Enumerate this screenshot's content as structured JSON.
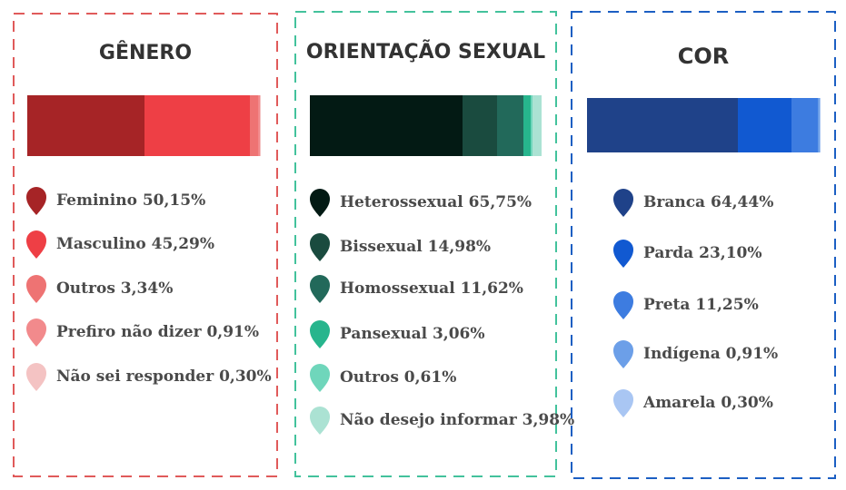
{
  "chart_data": [
    {
      "type": "bar",
      "stacked": true,
      "orientation": "horizontal",
      "title": "GÊNERO",
      "categories": [
        "Feminino",
        "Masculino",
        "Outros",
        "Prefiro não dizer",
        "Não sei responder"
      ],
      "values": [
        50.15,
        45.29,
        3.34,
        0.91,
        0.3
      ],
      "labels": [
        "Feminino 50,15%",
        "Masculino 45,29%",
        "Outros 3,34%",
        "Prefiro não dizer 0,91%",
        "Não sei responder 0,30%"
      ],
      "colors": [
        "#a62426",
        "#ee3f45",
        "#ee7373",
        "#f28a8c",
        "#f4c3c3"
      ],
      "border_color": "#e05a5a",
      "legend": "below"
    },
    {
      "type": "bar",
      "stacked": true,
      "orientation": "horizontal",
      "title": "ORIENTAÇÃO SEXUAL",
      "categories": [
        "Heterossexual",
        "Bissexual",
        "Homossexual",
        "Pansexual",
        "Outros",
        "Não desejo informar"
      ],
      "values": [
        65.75,
        14.98,
        11.62,
        3.06,
        0.61,
        3.98
      ],
      "labels": [
        "Heterossexual 65,75%",
        "Bissexual  14,98%",
        "Homossexual 11,62%",
        "Pansexual 3,06%",
        "Outros 0,61%",
        "Não desejo informar 3,98%"
      ],
      "colors": [
        "#031a14",
        "#1a4b3f",
        "#22695a",
        "#27b58d",
        "#6fd6bb",
        "#abe2d3"
      ],
      "border_color": "#43c29c",
      "legend": "below"
    },
    {
      "type": "bar",
      "stacked": true,
      "orientation": "horizontal",
      "title": "COR",
      "categories": [
        "Branca",
        "Parda",
        "Preta",
        "Indígena",
        "Amarela"
      ],
      "values": [
        64.44,
        23.1,
        11.25,
        0.91,
        0.3
      ],
      "labels": [
        "Branca 64,44%",
        "Parda 23,10%",
        "Preta 11,25%",
        "Indígena 0,91%",
        "Amarela 0,30%"
      ],
      "colors": [
        "#1f4289",
        "#1159d1",
        "#3d7ce0",
        "#6c9fe8",
        "#a9c6f3"
      ],
      "border_color": "#1c5fc3",
      "legend": "below"
    }
  ]
}
